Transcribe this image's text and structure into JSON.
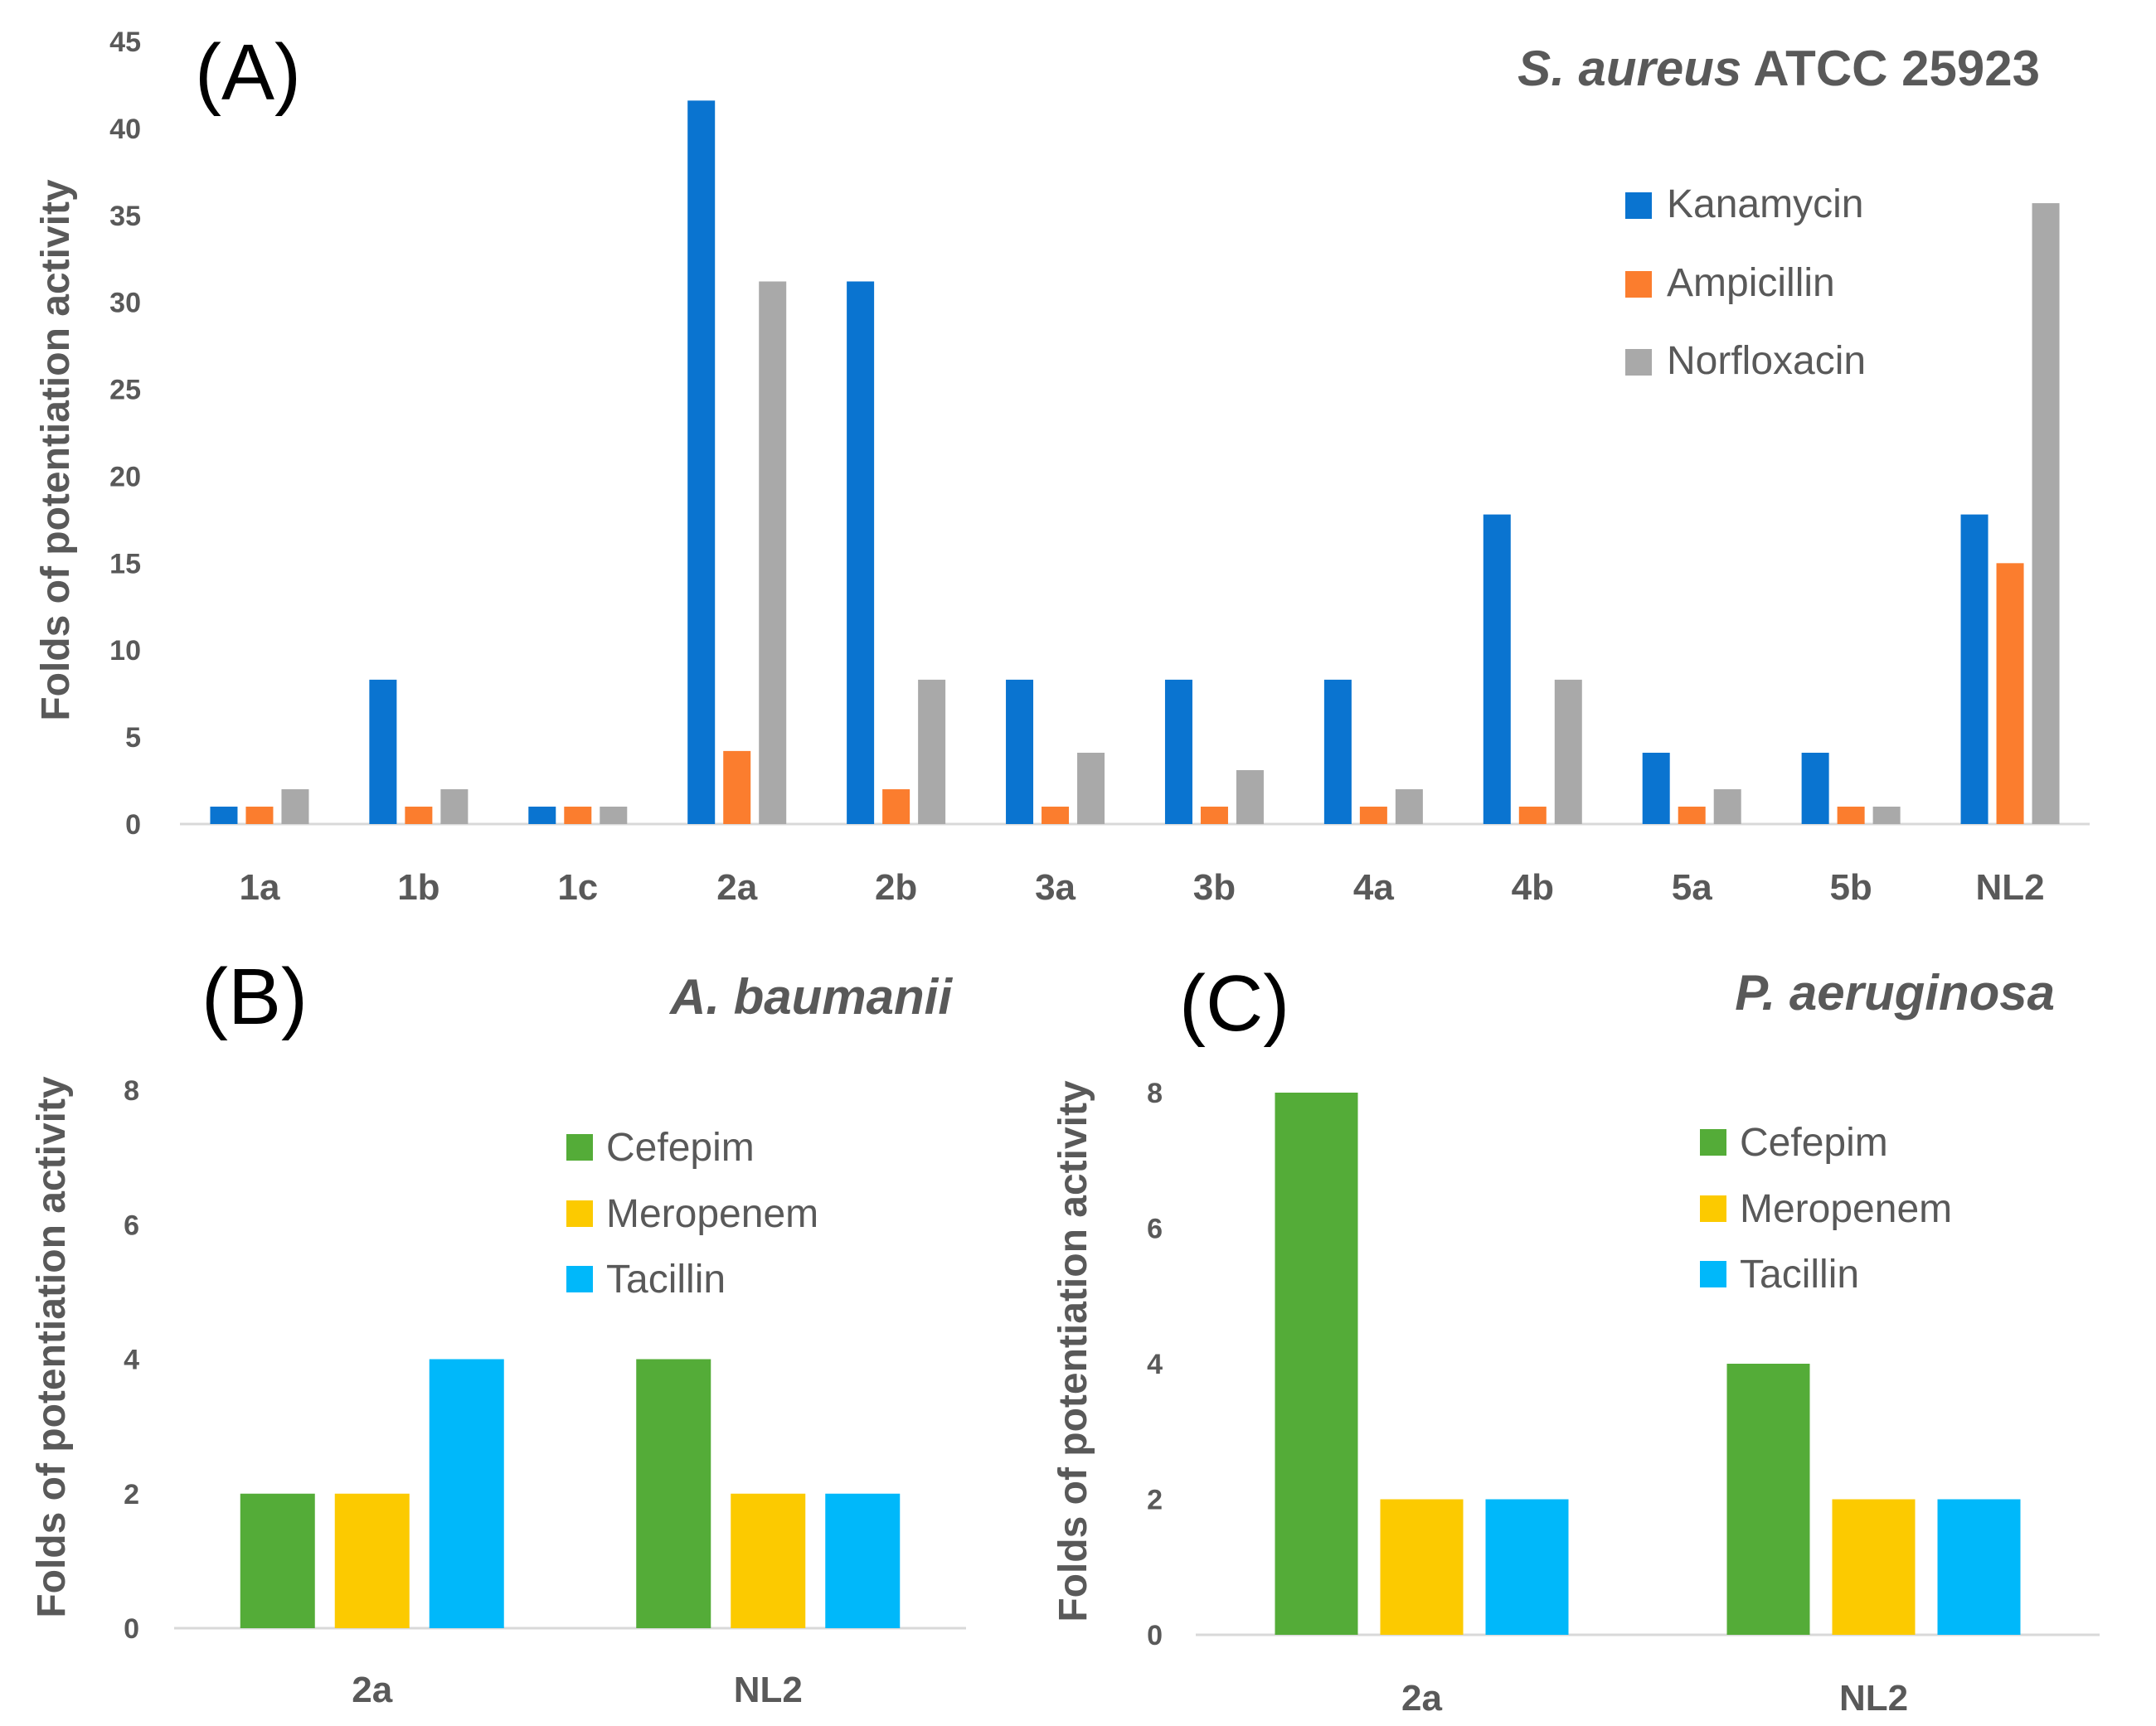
{
  "chart_data": [
    {
      "id": "A",
      "type": "bar",
      "panel_label": "(A)",
      "title": {
        "italic": "S. aureus",
        "rest": "ATCC 25923"
      },
      "ylabel": "Folds of potentiation activity",
      "xlabel": "",
      "ylim": [
        0,
        45
      ],
      "yticks": [
        0,
        5,
        10,
        15,
        20,
        25,
        30,
        35,
        40,
        45
      ],
      "categories": [
        "1a",
        "1b",
        "1c",
        "2a",
        "2b",
        "3a",
        "3b",
        "4a",
        "4b",
        "5a",
        "5b",
        "NL2"
      ],
      "series": [
        {
          "name": "Kanamycin",
          "color": "#0a74d0",
          "values": [
            1,
            8.3,
            1,
            41.6,
            31.2,
            8.3,
            8.3,
            8.3,
            17.8,
            4.1,
            4.1,
            17.8
          ]
        },
        {
          "name": "Ampicillin",
          "color": "#fb7d2e",
          "values": [
            1,
            1,
            1,
            4.2,
            2,
            1,
            1,
            1,
            1,
            1,
            1,
            15
          ]
        },
        {
          "name": "Norfloxacin",
          "color": "#a9a9a9",
          "values": [
            2,
            2,
            1,
            31.2,
            8.3,
            4.1,
            3.1,
            2,
            8.3,
            2,
            1,
            35.7
          ]
        }
      ],
      "grid": false,
      "legend_position": "top-right"
    },
    {
      "id": "B",
      "type": "bar",
      "panel_label": "(B)",
      "title": {
        "italic": "A. baumanii",
        "rest": ""
      },
      "ylabel": "Folds of potentiation activity",
      "xlabel": "",
      "ylim": [
        0,
        8
      ],
      "yticks": [
        0,
        2,
        4,
        6,
        8
      ],
      "categories": [
        "2a",
        "NL2"
      ],
      "series": [
        {
          "name": "Cefepim",
          "color": "#54ac38",
          "values": [
            2,
            4
          ]
        },
        {
          "name": "Meropenem",
          "color": "#fcca00",
          "values": [
            2,
            2
          ]
        },
        {
          "name": "Tacillin",
          "color": "#00b8fa",
          "values": [
            4,
            2
          ]
        }
      ],
      "grid": false,
      "legend_position": "top-right"
    },
    {
      "id": "C",
      "type": "bar",
      "panel_label": "(C)",
      "title": {
        "italic": "P. aeruginosa",
        "rest": ""
      },
      "ylabel": "Folds of potentiation activity",
      "xlabel": "",
      "ylim": [
        0,
        8
      ],
      "yticks": [
        0,
        2,
        4,
        6,
        8
      ],
      "categories": [
        "2a",
        "NL2"
      ],
      "series": [
        {
          "name": "Cefepim",
          "color": "#54ac38",
          "values": [
            8,
            4
          ]
        },
        {
          "name": "Meropenem",
          "color": "#fcca00",
          "values": [
            2,
            2
          ]
        },
        {
          "name": "Tacillin",
          "color": "#00b8fa",
          "values": [
            2,
            2
          ]
        }
      ],
      "grid": false,
      "legend_position": "top-right"
    }
  ]
}
